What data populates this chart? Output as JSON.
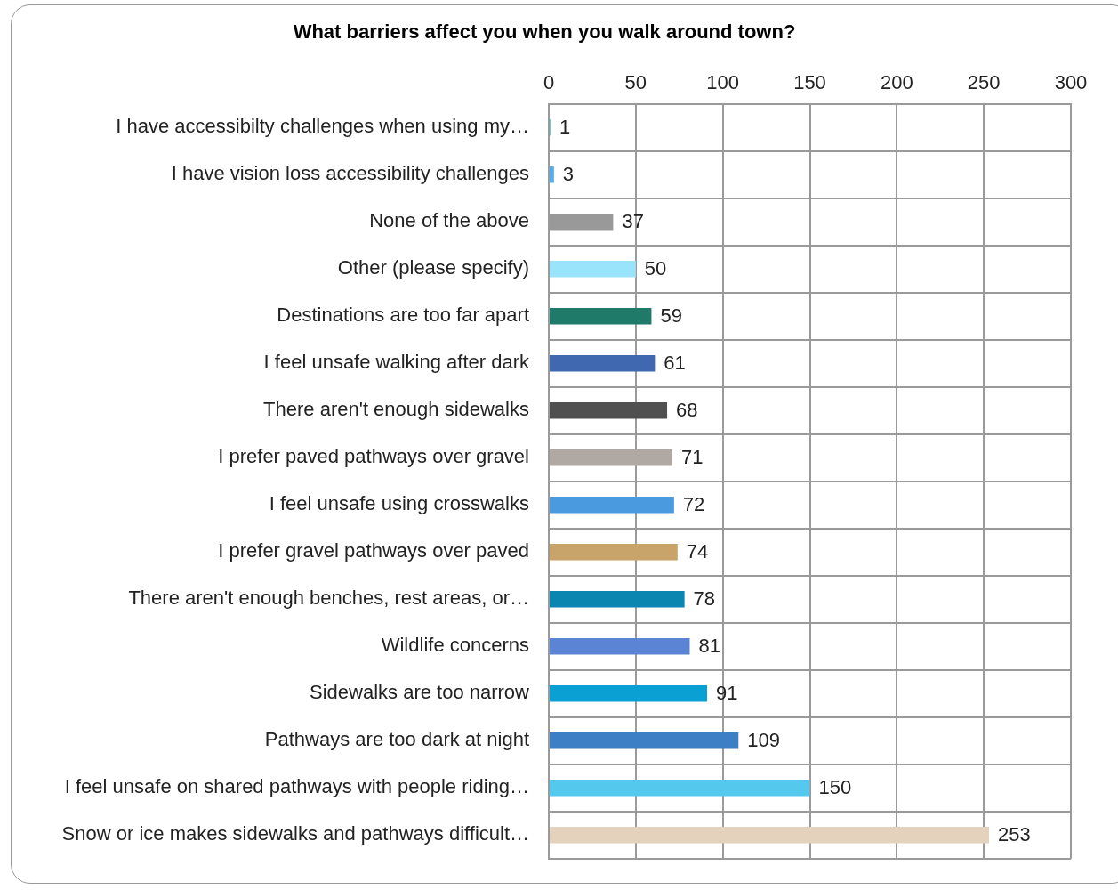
{
  "chart_data": {
    "type": "bar",
    "orientation": "horizontal",
    "title": "What barriers affect you when you walk around town?",
    "categories": [
      "I have accessibilty challenges when using my…",
      "I have vision loss accessibility challenges",
      "None of the above",
      "Other (please specify)",
      "Destinations are too far apart",
      "I feel unsafe walking after dark",
      "There aren't enough sidewalks",
      "I prefer paved pathways over gravel",
      "I feel unsafe using crosswalks",
      "I prefer gravel pathways over paved",
      "There aren't enough benches, rest areas, or…",
      "Wildlife concerns",
      "Sidewalks are too narrow",
      "Pathways are too dark at night",
      "I feel unsafe on shared pathways with people riding…",
      "Snow or ice makes sidewalks and pathways difficult…"
    ],
    "values": [
      1,
      3,
      37,
      50,
      59,
      61,
      68,
      71,
      72,
      74,
      78,
      81,
      91,
      109,
      150,
      253
    ],
    "colors": [
      "#4dd0f0",
      "#55aef0",
      "#999999",
      "#99e4fa",
      "#1f7a6a",
      "#4068b0",
      "#505050",
      "#b0a8a2",
      "#4a9ae0",
      "#c8a36a",
      "#0a86b0",
      "#5b85d4",
      "#0aa0d4",
      "#3c7fc4",
      "#55c8ee",
      "#e4d2bc"
    ],
    "xlim": [
      0,
      300
    ],
    "xticks": [
      0,
      50,
      100,
      150,
      200,
      250,
      300
    ],
    "grid": true,
    "data_labels": true
  }
}
